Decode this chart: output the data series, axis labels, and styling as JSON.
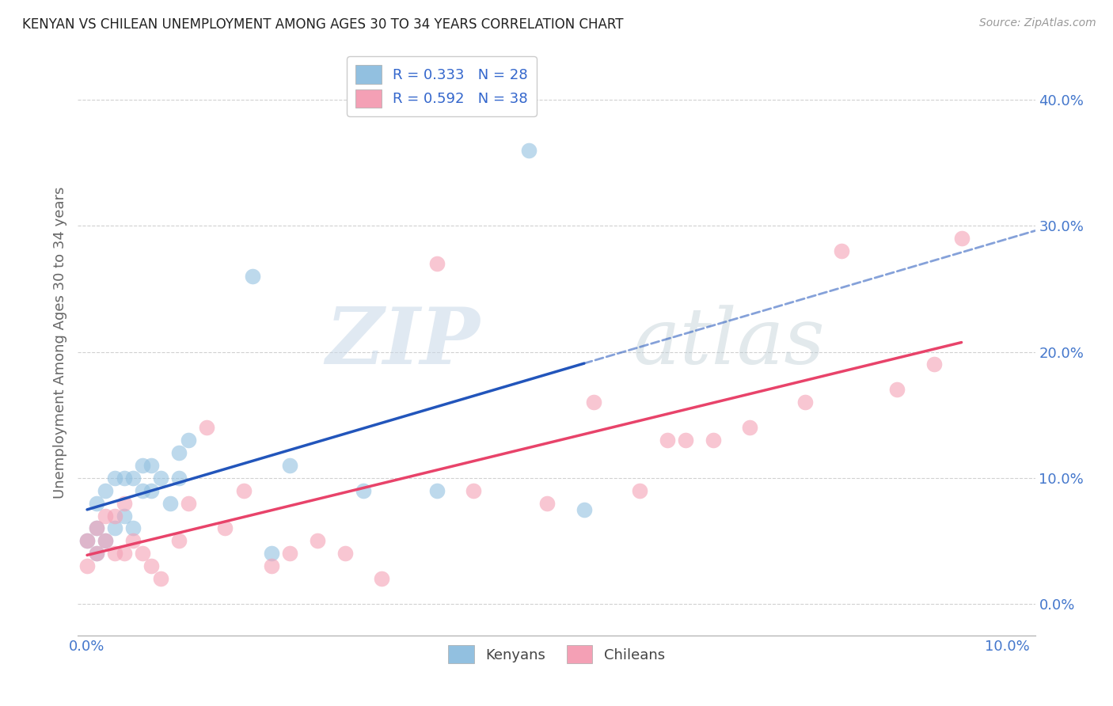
{
  "title": "KENYAN VS CHILEAN UNEMPLOYMENT AMONG AGES 30 TO 34 YEARS CORRELATION CHART",
  "source": "Source: ZipAtlas.com",
  "ylabel": "Unemployment Among Ages 30 to 34 years",
  "xlabel_ticks": [
    "0.0%",
    "",
    "",
    "",
    "",
    "",
    "",
    "",
    "",
    "",
    "10.0%"
  ],
  "xlabel_vals": [
    0.0,
    0.01,
    0.02,
    0.03,
    0.04,
    0.05,
    0.06,
    0.07,
    0.08,
    0.09,
    0.1
  ],
  "ylabel_ticks": [
    "0.0%",
    "10.0%",
    "20.0%",
    "30.0%",
    "40.0%"
  ],
  "ylabel_vals": [
    0.0,
    0.1,
    0.2,
    0.3,
    0.4
  ],
  "xlim": [
    -0.001,
    0.103
  ],
  "ylim": [
    -0.025,
    0.44
  ],
  "kenyan_x": [
    0.0,
    0.001,
    0.001,
    0.001,
    0.002,
    0.002,
    0.003,
    0.003,
    0.004,
    0.004,
    0.005,
    0.005,
    0.006,
    0.006,
    0.007,
    0.007,
    0.008,
    0.009,
    0.01,
    0.01,
    0.011,
    0.018,
    0.02,
    0.022,
    0.03,
    0.038,
    0.048,
    0.054
  ],
  "kenyan_y": [
    0.05,
    0.04,
    0.06,
    0.08,
    0.05,
    0.09,
    0.06,
    0.1,
    0.07,
    0.1,
    0.06,
    0.1,
    0.09,
    0.11,
    0.09,
    0.11,
    0.1,
    0.08,
    0.1,
    0.12,
    0.13,
    0.26,
    0.04,
    0.11,
    0.09,
    0.09,
    0.36,
    0.075
  ],
  "chilean_x": [
    0.0,
    0.0,
    0.001,
    0.001,
    0.002,
    0.002,
    0.003,
    0.003,
    0.004,
    0.004,
    0.005,
    0.006,
    0.007,
    0.008,
    0.01,
    0.011,
    0.013,
    0.015,
    0.017,
    0.02,
    0.022,
    0.025,
    0.028,
    0.032,
    0.038,
    0.042,
    0.05,
    0.055,
    0.06,
    0.063,
    0.065,
    0.068,
    0.072,
    0.078,
    0.082,
    0.088,
    0.092,
    0.095
  ],
  "chilean_y": [
    0.03,
    0.05,
    0.04,
    0.06,
    0.05,
    0.07,
    0.04,
    0.07,
    0.04,
    0.08,
    0.05,
    0.04,
    0.03,
    0.02,
    0.05,
    0.08,
    0.14,
    0.06,
    0.09,
    0.03,
    0.04,
    0.05,
    0.04,
    0.02,
    0.27,
    0.09,
    0.08,
    0.16,
    0.09,
    0.13,
    0.13,
    0.13,
    0.14,
    0.16,
    0.28,
    0.17,
    0.19,
    0.29
  ],
  "kenyan_color": "#92c0e0",
  "chilean_color": "#f4a0b5",
  "kenyan_line_color": "#2255bb",
  "chilean_line_color": "#e8436a",
  "R_kenyan": "R = 0.333",
  "N_kenyan": "N = 28",
  "R_chilean": "R = 0.592",
  "N_chilean": "N = 38",
  "legend_labels": [
    "Kenyans",
    "Chileans"
  ],
  "watermark_zip": "ZIP",
  "watermark_atlas": "atlas",
  "background_color": "#ffffff",
  "grid_color": "#cccccc"
}
